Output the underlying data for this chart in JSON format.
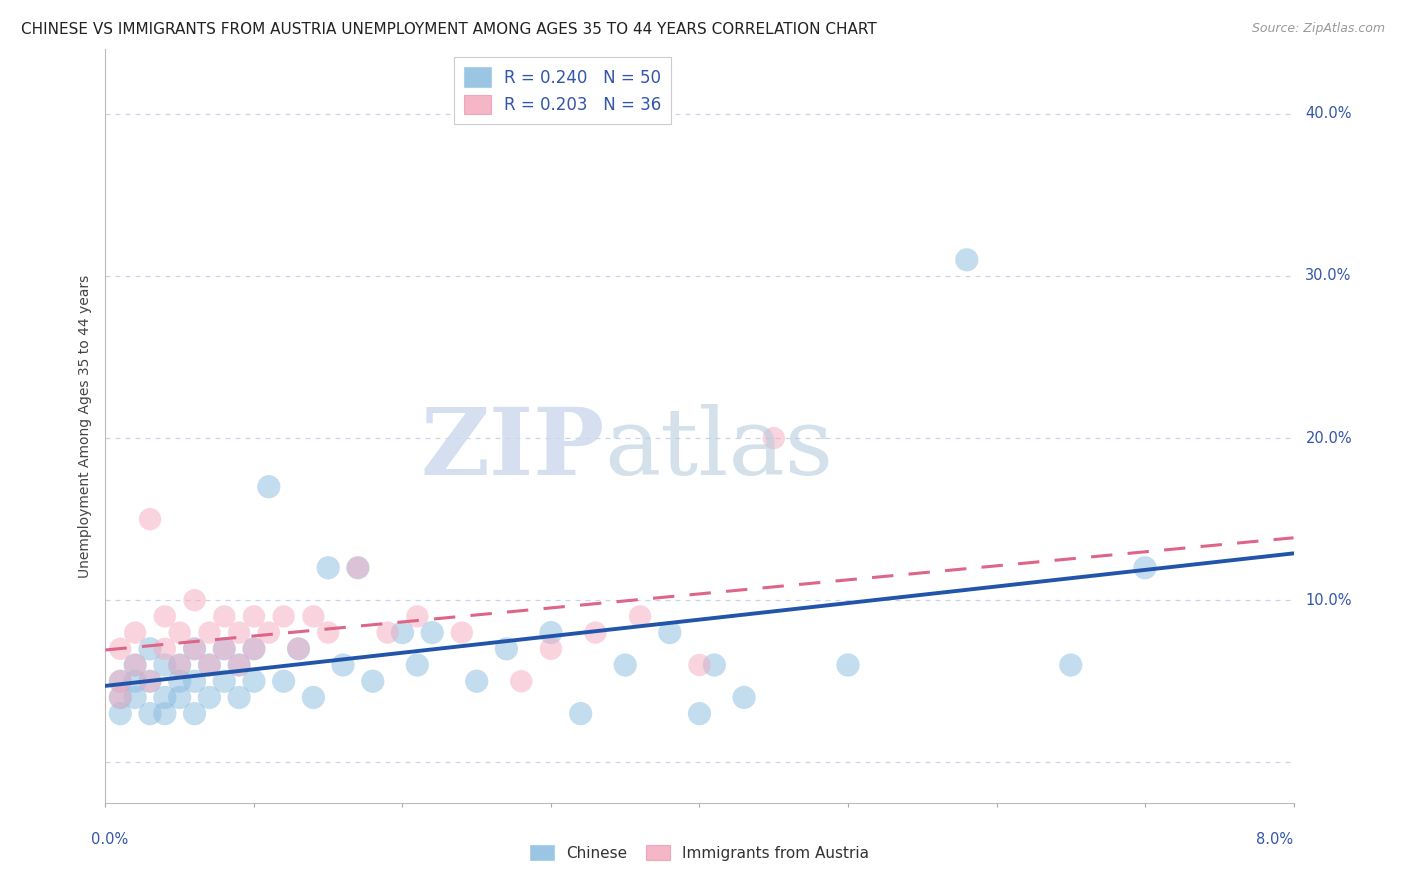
{
  "title": "CHINESE VS IMMIGRANTS FROM AUSTRIA UNEMPLOYMENT AMONG AGES 35 TO 44 YEARS CORRELATION CHART",
  "source": "Source: ZipAtlas.com",
  "ylabel": "Unemployment Among Ages 35 to 44 years",
  "watermark_zip": "ZIP",
  "watermark_atlas": "atlas",
  "legend_entry_1": "R = 0.240   N = 50",
  "legend_entry_2": "R = 0.203   N = 36",
  "legend_label_chinese": "Chinese",
  "legend_label_austria": "Immigrants from Austria",
  "ytick_values": [
    0.0,
    0.1,
    0.2,
    0.3,
    0.4
  ],
  "ytick_labels": [
    "",
    "10.0%",
    "20.0%",
    "30.0%",
    "40.0%"
  ],
  "xlim": [
    0.0,
    0.08
  ],
  "ylim": [
    -0.025,
    0.44
  ],
  "chinese_color": "#88bbdf",
  "austria_color": "#f4aabf",
  "trendline_chinese_color": "#2255aa",
  "trendline_austria_color": "#dd6688",
  "chinese_x": [
    0.001,
    0.001,
    0.001,
    0.002,
    0.002,
    0.002,
    0.003,
    0.003,
    0.003,
    0.004,
    0.004,
    0.004,
    0.005,
    0.005,
    0.005,
    0.006,
    0.006,
    0.006,
    0.007,
    0.007,
    0.008,
    0.008,
    0.009,
    0.009,
    0.01,
    0.01,
    0.011,
    0.012,
    0.013,
    0.014,
    0.015,
    0.016,
    0.017,
    0.018,
    0.02,
    0.021,
    0.022,
    0.025,
    0.027,
    0.03,
    0.032,
    0.035,
    0.038,
    0.04,
    0.041,
    0.043,
    0.05,
    0.058,
    0.065,
    0.07
  ],
  "chinese_y": [
    0.04,
    0.05,
    0.03,
    0.06,
    0.04,
    0.05,
    0.03,
    0.07,
    0.05,
    0.04,
    0.06,
    0.03,
    0.05,
    0.04,
    0.06,
    0.03,
    0.05,
    0.07,
    0.04,
    0.06,
    0.05,
    0.07,
    0.04,
    0.06,
    0.05,
    0.07,
    0.17,
    0.05,
    0.07,
    0.04,
    0.12,
    0.06,
    0.12,
    0.05,
    0.08,
    0.06,
    0.08,
    0.05,
    0.07,
    0.08,
    0.03,
    0.06,
    0.08,
    0.03,
    0.06,
    0.04,
    0.06,
    0.31,
    0.06,
    0.12
  ],
  "austria_x": [
    0.001,
    0.001,
    0.001,
    0.002,
    0.002,
    0.003,
    0.003,
    0.004,
    0.004,
    0.005,
    0.005,
    0.006,
    0.006,
    0.007,
    0.007,
    0.008,
    0.008,
    0.009,
    0.009,
    0.01,
    0.01,
    0.011,
    0.012,
    0.013,
    0.014,
    0.015,
    0.017,
    0.019,
    0.021,
    0.024,
    0.028,
    0.03,
    0.033,
    0.036,
    0.04,
    0.045
  ],
  "austria_y": [
    0.05,
    0.07,
    0.04,
    0.06,
    0.08,
    0.15,
    0.05,
    0.07,
    0.09,
    0.06,
    0.08,
    0.07,
    0.1,
    0.06,
    0.08,
    0.07,
    0.09,
    0.06,
    0.08,
    0.07,
    0.09,
    0.08,
    0.09,
    0.07,
    0.09,
    0.08,
    0.12,
    0.08,
    0.09,
    0.08,
    0.05,
    0.07,
    0.08,
    0.09,
    0.06,
    0.2
  ],
  "background_color": "#ffffff",
  "grid_color": "#c8d4e8",
  "title_fontsize": 11,
  "axis_label_color": "#3355aa"
}
